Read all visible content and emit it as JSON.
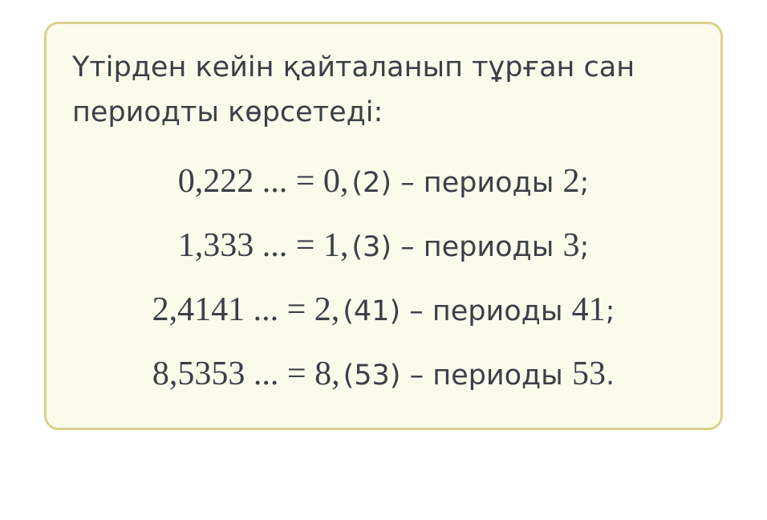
{
  "intro": "Үтірден кейін қайталанып тұрған сан периодты көрсетеді:",
  "rows": [
    {
      "lhs": "0,222 ... = 0,",
      "paren": "(2)",
      "dash": " – периоды ",
      "period": "2",
      "end": ";"
    },
    {
      "lhs": "1,333 ... = 1,",
      "paren": "(3)",
      "dash": " – периоды ",
      "period": "3",
      "end": ";"
    },
    {
      "lhs": "2,4141 ... = 2,",
      "paren": "(41)",
      "dash": " – периоды ",
      "period": "41",
      "end": ";"
    },
    {
      "lhs": "8,5353 ... = 8,",
      "paren": "(53)",
      "dash": " – периоды ",
      "period": "53",
      "end": "."
    }
  ],
  "colors": {
    "card_bg": "#fbfbec",
    "card_border": "#d8d28e",
    "text": "#3b4046"
  }
}
